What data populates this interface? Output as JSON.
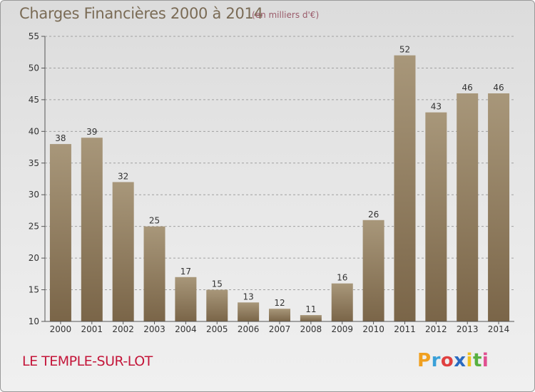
{
  "header": {
    "title": "Charges Financières 2000 à 2014",
    "subtitle": "(en milliers d'€)"
  },
  "footer": {
    "city": "LE TEMPLE-SUR-LOT",
    "brand_letters": [
      "P",
      "r",
      "o",
      "x",
      "i",
      "t",
      "i"
    ],
    "brand_colors": [
      "#f0a020",
      "#3aa0d8",
      "#e04040",
      "#2a6ac0",
      "#f0c020",
      "#58b040",
      "#e05090"
    ]
  },
  "colors": {
    "bar_top": "#a8977a",
    "bar_bottom": "#7a6548",
    "grid": "#a0a0a0",
    "axis": "#555555"
  },
  "chart_data": {
    "type": "bar",
    "title": "Charges Financières 2000 à 2014",
    "subtitle": "(en milliers d'€)",
    "categories": [
      "2000",
      "2001",
      "2002",
      "2003",
      "2004",
      "2005",
      "2006",
      "2007",
      "2008",
      "2009",
      "2010",
      "2011",
      "2012",
      "2013",
      "2014"
    ],
    "values": [
      38,
      39,
      32,
      25,
      17,
      15,
      13,
      12,
      11,
      16,
      26,
      52,
      43,
      46,
      46
    ],
    "ylim": [
      10,
      55
    ],
    "yticks": [
      10,
      15,
      20,
      25,
      30,
      35,
      40,
      45,
      50,
      55
    ],
    "grid": true,
    "xlabel": "",
    "ylabel": ""
  }
}
